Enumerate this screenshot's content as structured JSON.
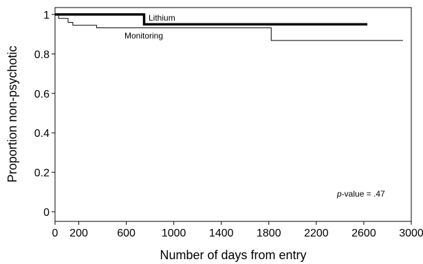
{
  "chart_data": {
    "type": "line",
    "step": true,
    "xlabel": "Number of days from entry",
    "ylabel": "Proportion non-psychotic",
    "xlim": [
      0,
      3000
    ],
    "ylim": [
      0,
      1
    ],
    "x_ticks": [
      0,
      200,
      600,
      1000,
      1400,
      1800,
      2200,
      2600,
      3000
    ],
    "x_tick_labels": [
      "0",
      "200",
      "600",
      "1000",
      "1400",
      "1800",
      "2200",
      "2600",
      "3000"
    ],
    "y_ticks": [
      0,
      0.2,
      0.4,
      0.6,
      0.8,
      1
    ],
    "y_tick_labels": [
      "0",
      "0.2",
      "0.4",
      "0.6",
      "0.8",
      "1"
    ],
    "grid": false,
    "series": [
      {
        "name": "Lithium",
        "style": "bold",
        "color": "#000000",
        "x": [
          0,
          750,
          750,
          2630
        ],
        "y": [
          1.0,
          1.0,
          0.95,
          0.95
        ]
      },
      {
        "name": "Monitoring",
        "style": "thin",
        "color": "#000000",
        "x": [
          0,
          30,
          30,
          110,
          110,
          150,
          150,
          350,
          350,
          1820,
          1820,
          2930
        ],
        "y": [
          1.0,
          1.0,
          0.98,
          0.98,
          0.96,
          0.96,
          0.945,
          0.945,
          0.932,
          0.932,
          0.868,
          0.868
        ]
      }
    ],
    "annotations": {
      "pvalue_prefix": "p",
      "pvalue_suffix": "-value = .47"
    }
  }
}
